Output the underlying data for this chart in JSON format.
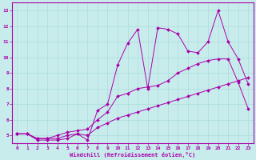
{
  "title": "",
  "xlabel": "Windchill (Refroidissement éolien,°C)",
  "ylabel": "",
  "bg_color": "#c8ecec",
  "line_color": "#aa00aa",
  "grid_color": "#aadddd",
  "xlim": [
    -0.5,
    23.5
  ],
  "ylim": [
    4.5,
    13.5
  ],
  "yticks": [
    5,
    6,
    7,
    8,
    9,
    10,
    11,
    12,
    13
  ],
  "xticks": [
    0,
    1,
    2,
    3,
    4,
    5,
    6,
    7,
    8,
    9,
    10,
    11,
    12,
    13,
    14,
    15,
    16,
    17,
    18,
    19,
    20,
    21,
    22,
    23
  ],
  "series": [
    {
      "x": [
        0,
        1,
        2,
        3,
        4,
        5,
        6,
        7,
        8,
        9,
        10,
        11,
        12,
        13,
        14,
        15,
        16,
        17,
        18,
        19,
        20,
        21,
        22,
        23
      ],
      "y": [
        5.1,
        5.1,
        4.8,
        4.8,
        4.8,
        5.0,
        5.1,
        5.0,
        5.5,
        5.8,
        6.1,
        6.3,
        6.5,
        6.7,
        6.9,
        7.1,
        7.3,
        7.5,
        7.7,
        7.9,
        8.1,
        8.3,
        8.5,
        8.7
      ]
    },
    {
      "x": [
        0,
        1,
        2,
        3,
        4,
        5,
        6,
        7,
        8,
        9,
        10,
        11,
        12,
        13,
        14,
        15,
        16,
        17,
        18,
        19,
        20,
        21,
        22,
        23
      ],
      "y": [
        5.1,
        5.1,
        4.8,
        4.8,
        5.0,
        5.2,
        5.3,
        5.4,
        6.0,
        6.5,
        7.5,
        7.7,
        8.0,
        8.1,
        8.2,
        8.5,
        9.0,
        9.3,
        9.6,
        9.8,
        9.9,
        9.9,
        8.4,
        6.7
      ]
    },
    {
      "x": [
        0,
        1,
        2,
        3,
        4,
        5,
        6,
        7,
        8,
        9,
        10,
        11,
        12,
        13,
        14,
        15,
        16,
        17,
        18,
        19,
        20,
        21,
        22,
        23
      ],
      "y": [
        5.1,
        5.1,
        4.7,
        4.7,
        4.7,
        4.8,
        5.1,
        4.7,
        6.6,
        7.0,
        9.5,
        10.9,
        11.8,
        8.0,
        11.9,
        11.8,
        11.5,
        10.4,
        10.3,
        11.0,
        13.0,
        11.0,
        9.9,
        8.3
      ]
    }
  ]
}
